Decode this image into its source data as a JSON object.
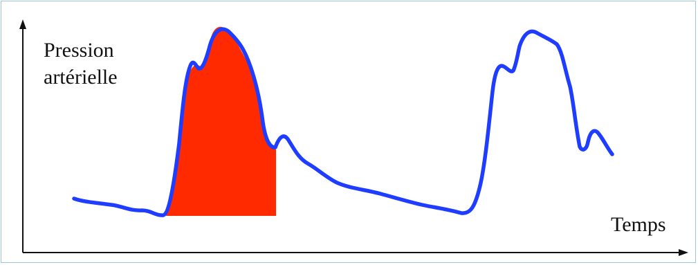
{
  "labels": {
    "y_axis_line1": "Pression",
    "y_axis_line2": "artérielle",
    "x_axis": "Temps"
  },
  "colors": {
    "curve": "#1f3dff",
    "shaded_area": "#ff2a00",
    "axis": "#111111",
    "frame": "#9cc3e6"
  }
}
